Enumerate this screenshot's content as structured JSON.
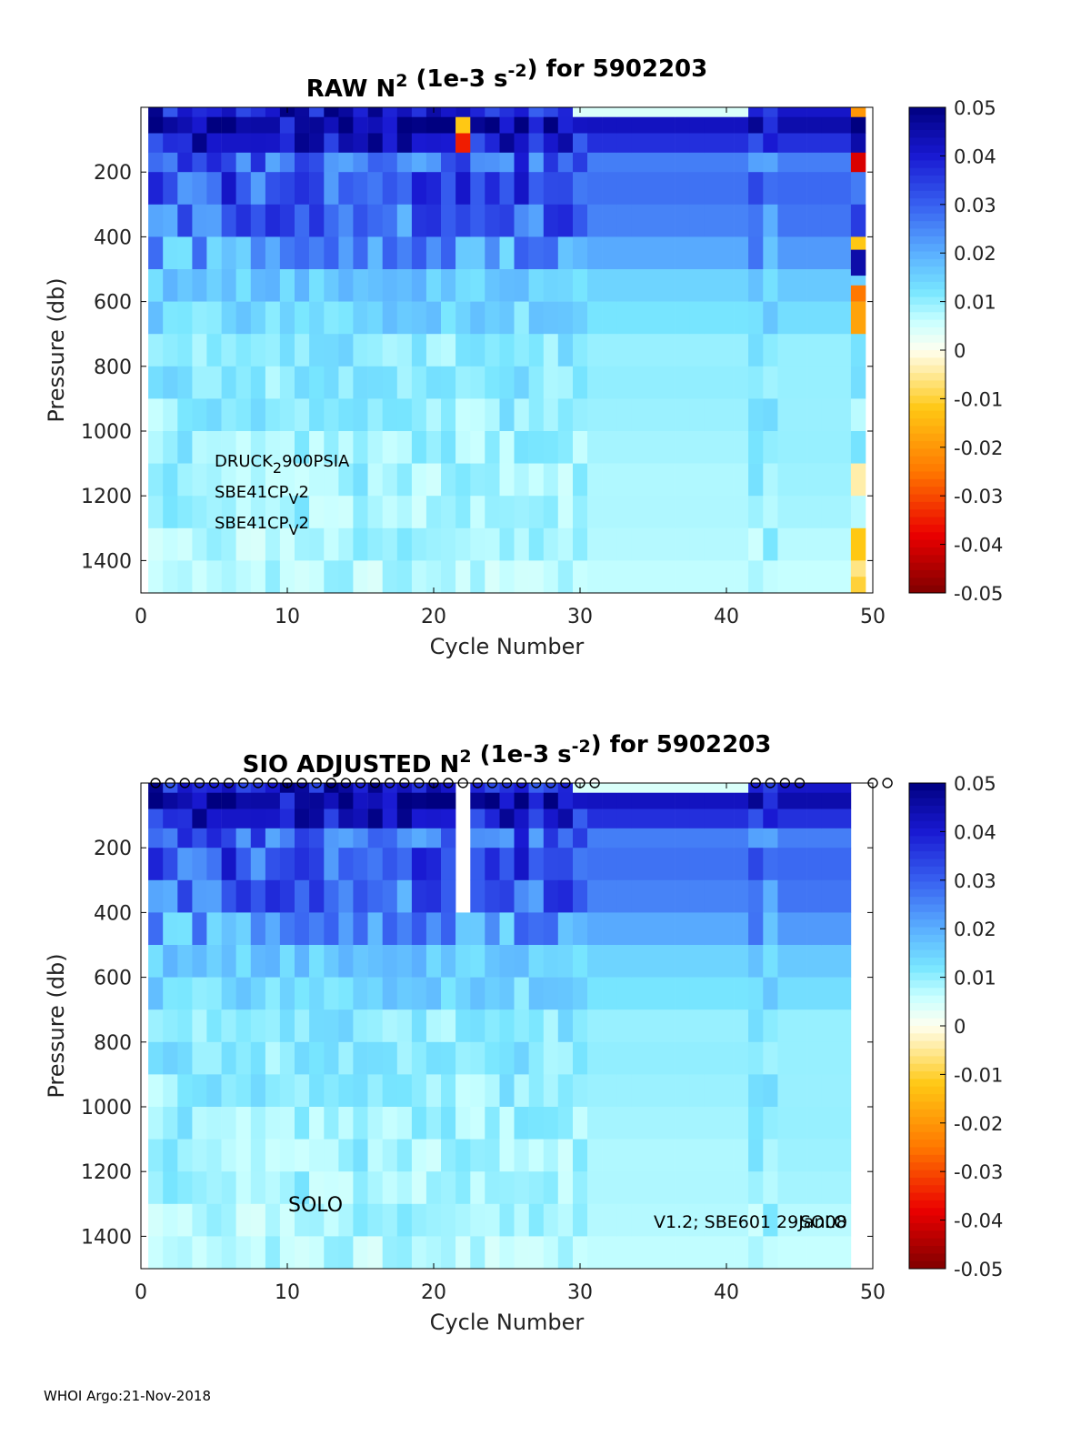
{
  "chart_data": [
    {
      "type": "heatmap",
      "title": {
        "prefix": "RAW N",
        "sup1": "2",
        "mid": " (1e-3 s",
        "sup2": "-2",
        "suffix": ") for 5902203"
      },
      "xlabel": "Cycle Number",
      "ylabel": "Pressure (db)",
      "xlim": [
        0,
        50
      ],
      "ylim": [
        0,
        1500
      ],
      "xticks": [
        0,
        10,
        20,
        30,
        40,
        50
      ],
      "yticks": [
        200,
        400,
        600,
        800,
        1000,
        1200,
        1400
      ],
      "clim": [
        -0.05,
        0.05
      ],
      "colorbar_ticks": [
        "0.05",
        "0.04",
        "0.03",
        "0.02",
        "0.01",
        "0",
        "-0.01",
        "-0.02",
        "-0.03",
        "-0.04",
        "-0.05"
      ],
      "cycle_range": [
        1,
        49
      ],
      "layers": [
        {
          "top": 0,
          "bottom": 30,
          "base": 0.04
        },
        {
          "top": 30,
          "bottom": 80,
          "base": 0.045
        },
        {
          "top": 80,
          "bottom": 140,
          "base": 0.04
        },
        {
          "top": 140,
          "bottom": 200,
          "base": 0.03
        },
        {
          "top": 200,
          "bottom": 300,
          "base": 0.032
        },
        {
          "top": 300,
          "bottom": 400,
          "base": 0.028
        },
        {
          "top": 400,
          "bottom": 500,
          "base": 0.022
        },
        {
          "top": 500,
          "bottom": 600,
          "base": 0.016
        },
        {
          "top": 600,
          "bottom": 700,
          "base": 0.014
        },
        {
          "top": 700,
          "bottom": 800,
          "base": 0.011
        },
        {
          "top": 800,
          "bottom": 900,
          "base": 0.011
        },
        {
          "top": 900,
          "bottom": 1000,
          "base": 0.01
        },
        {
          "top": 1000,
          "bottom": 1100,
          "base": 0.0095
        },
        {
          "top": 1100,
          "bottom": 1200,
          "base": 0.009
        },
        {
          "top": 1200,
          "bottom": 1300,
          "base": 0.009
        },
        {
          "top": 1300,
          "bottom": 1400,
          "base": 0.008
        },
        {
          "top": 1400,
          "bottom": 1500,
          "base": 0.007
        }
      ],
      "gaps": [],
      "anomalies": [
        {
          "cycle": 22,
          "top": 30,
          "bottom": 80,
          "value": -0.012
        },
        {
          "cycle": 22,
          "top": 80,
          "bottom": 140,
          "value": -0.035
        },
        {
          "cycle": 49,
          "top": 0,
          "bottom": 30,
          "value": -0.02
        },
        {
          "cycle": 49,
          "top": 140,
          "bottom": 200,
          "value": -0.04
        },
        {
          "cycle": 49,
          "top": 400,
          "bottom": 440,
          "value": -0.012
        },
        {
          "cycle": 49,
          "top": 550,
          "bottom": 600,
          "value": -0.025
        },
        {
          "cycle": 49,
          "top": 600,
          "bottom": 700,
          "value": -0.018
        },
        {
          "cycle": 49,
          "top": 1100,
          "bottom": 1150,
          "value": -0.004
        },
        {
          "cycle": 49,
          "top": 1300,
          "bottom": 1350,
          "value": -0.012
        },
        {
          "cycle": 49,
          "top": 1400,
          "bottom": 1450,
          "value": -0.006
        },
        {
          "cycle": 49,
          "top": 1450,
          "bottom": 1500,
          "value": -0.01
        },
        {
          "cycle": 49,
          "top": 440,
          "bottom": 520,
          "value": 0.045
        }
      ],
      "annotations": [
        {
          "text": "DRUCK",
          "sub": "2",
          "rest": "900PSIA"
        },
        {
          "text": "SBE41CP",
          "sub": "V",
          "rest": "2"
        },
        {
          "text": "SBE41CP",
          "sub": "V",
          "rest": "2"
        }
      ],
      "markers": []
    },
    {
      "type": "heatmap",
      "title": {
        "prefix": "SIO  ADJUSTED N",
        "sup1": "2",
        "mid": " (1e-3 s",
        "sup2": "-2",
        "suffix": ") for 5902203"
      },
      "xlabel": "Cycle Number",
      "ylabel": "Pressure (db)",
      "xlim": [
        0,
        50
      ],
      "ylim": [
        0,
        1500
      ],
      "xticks": [
        0,
        10,
        20,
        30,
        40,
        50
      ],
      "yticks": [
        200,
        400,
        600,
        800,
        1000,
        1200,
        1400
      ],
      "clim": [
        -0.05,
        0.05
      ],
      "colorbar_ticks": [
        "0.05",
        "0.04",
        "0.03",
        "0.02",
        "0.01",
        "0",
        "-0.01",
        "-0.02",
        "-0.03",
        "-0.04",
        "-0.05"
      ],
      "cycle_range": [
        1,
        48
      ],
      "layers": [
        {
          "top": 0,
          "bottom": 30,
          "base": 0.04
        },
        {
          "top": 30,
          "bottom": 80,
          "base": 0.045
        },
        {
          "top": 80,
          "bottom": 140,
          "base": 0.04
        },
        {
          "top": 140,
          "bottom": 200,
          "base": 0.03
        },
        {
          "top": 200,
          "bottom": 300,
          "base": 0.032
        },
        {
          "top": 300,
          "bottom": 400,
          "base": 0.028
        },
        {
          "top": 400,
          "bottom": 500,
          "base": 0.022
        },
        {
          "top": 500,
          "bottom": 600,
          "base": 0.016
        },
        {
          "top": 600,
          "bottom": 700,
          "base": 0.014
        },
        {
          "top": 700,
          "bottom": 800,
          "base": 0.011
        },
        {
          "top": 800,
          "bottom": 900,
          "base": 0.011
        },
        {
          "top": 900,
          "bottom": 1000,
          "base": 0.01
        },
        {
          "top": 1000,
          "bottom": 1100,
          "base": 0.0095
        },
        {
          "top": 1100,
          "bottom": 1200,
          "base": 0.009
        },
        {
          "top": 1200,
          "bottom": 1300,
          "base": 0.009
        },
        {
          "top": 1300,
          "bottom": 1400,
          "base": 0.008
        },
        {
          "top": 1400,
          "bottom": 1500,
          "base": 0.007
        }
      ],
      "gaps": [
        {
          "cycle": 22,
          "top": 0,
          "bottom": 400
        }
      ],
      "anomalies": [],
      "annotations": [
        {
          "text": "SOLO"
        },
        {
          "text": "V1.2; SBE601 29Jan08"
        },
        {
          "text": "SOLO"
        }
      ],
      "markers": [
        1,
        2,
        3,
        4,
        5,
        6,
        7,
        8,
        9,
        10,
        11,
        12,
        13,
        14,
        15,
        16,
        17,
        18,
        19,
        20,
        21,
        22,
        23,
        24,
        25,
        26,
        27,
        28,
        29,
        30,
        31,
        42,
        43,
        44,
        45,
        50,
        51
      ]
    }
  ],
  "footer": "WHOI Argo:21-Nov-2018"
}
